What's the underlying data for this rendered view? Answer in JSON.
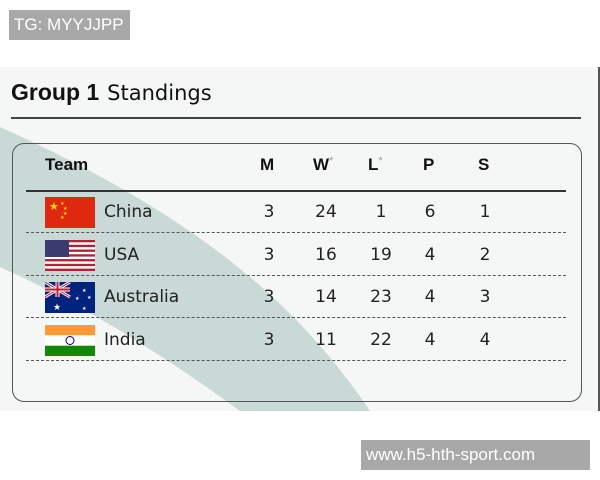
{
  "watermarks": {
    "top": "TG: MYYJJPP",
    "bottom": "www.h5-hth-sport.com"
  },
  "title": {
    "main": "Group 1",
    "sub": "Standings"
  },
  "columns": {
    "team": "Team",
    "m": "M",
    "w": "W",
    "l": "L",
    "p": "P",
    "s": "S",
    "asterisk": "*"
  },
  "rows": [
    {
      "team": "China",
      "flag": "china-flag",
      "m": "3",
      "w": "24",
      "l": "1",
      "p": "6",
      "s": "1"
    },
    {
      "team": "USA",
      "flag": "usa-flag",
      "m": "3",
      "w": "16",
      "l": "19",
      "p": "4",
      "s": "2"
    },
    {
      "team": "Australia",
      "flag": "australia-flag",
      "m": "3",
      "w": "14",
      "l": "23",
      "p": "4",
      "s": "3"
    },
    {
      "team": "India",
      "flag": "india-flag",
      "m": "3",
      "w": "11",
      "l": "22",
      "p": "4",
      "s": "4"
    }
  ],
  "colors": {
    "panel": "#f5f6f6",
    "swoosh": "#c9d9d6",
    "watermark": "#a8a8a8"
  }
}
